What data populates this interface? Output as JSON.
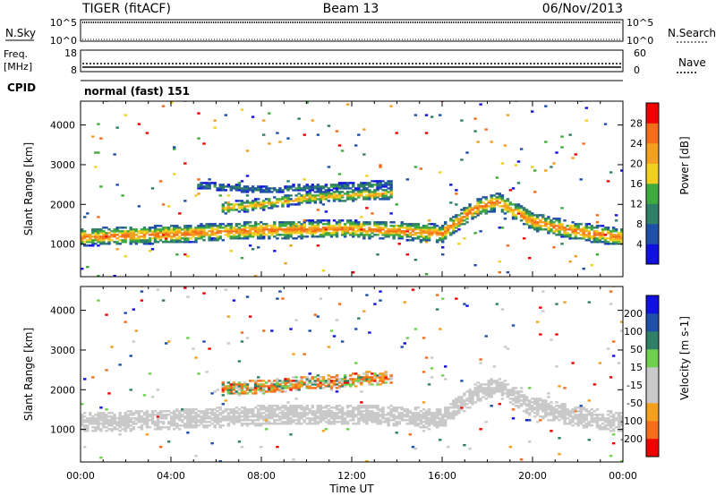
{
  "header": {
    "radar": "TIGER (fitACF)",
    "beam": "Beam 13",
    "date": "06/Nov/2013"
  },
  "top_panels": {
    "nsky": {
      "label": "N.Sky",
      "tick_top": "10^5",
      "tick_bottom": "10^0",
      "right_label": "N.Search",
      "right_tick_top": "10^5",
      "right_tick_bottom": "10^0"
    },
    "freq": {
      "label_line1": "Freq.",
      "label_line2": "[MHz]",
      "tick_top": "18",
      "tick_bottom": "8",
      "right_label": "Nave",
      "right_tick_top": "60",
      "right_tick_bottom": "0"
    },
    "cpid": {
      "label": "CPID",
      "value": "normal (fast) 151"
    }
  },
  "colors": {
    "power_scale": [
      "#1010e0",
      "#1f4fa8",
      "#2e7f66",
      "#3faa3f",
      "#f0d020",
      "#f3a020",
      "#f56c1a",
      "#f00000"
    ],
    "velocity_scale": [
      "#f00000",
      "#f56c1a",
      "#f3a020",
      "#c9c9c9",
      "#c9c9c9",
      "#6fd04f",
      "#2e7f66",
      "#1f4fa8",
      "#1010e0"
    ],
    "ground_scatter": "#c9c9c9"
  },
  "chart_data": [
    {
      "type": "heatmap",
      "ylabel": "Slant Range [km]",
      "xlabel": "",
      "xlim": [
        0,
        24
      ],
      "ylim": [
        180,
        4600
      ],
      "x_ticks": [
        "00:00",
        "04:00",
        "08:00",
        "12:00",
        "16:00",
        "20:00",
        "00:00"
      ],
      "y_ticks": [
        1000,
        2000,
        3000,
        4000
      ],
      "colorbar": {
        "label": "Power [dB]",
        "ticks": [
          4,
          8,
          12,
          16,
          20,
          24,
          28
        ],
        "range": [
          0,
          32
        ]
      },
      "bands": [
        {
          "name": "main-echo",
          "points": [
            [
              0,
              1150
            ],
            [
              4,
              1230
            ],
            [
              8,
              1330
            ],
            [
              10,
              1350
            ],
            [
              12,
              1360
            ],
            [
              14,
              1320
            ],
            [
              16,
              1250
            ],
            [
              17.5,
              1900
            ],
            [
              18.5,
              2050
            ],
            [
              20,
              1550
            ],
            [
              22,
              1300
            ],
            [
              24,
              1150
            ]
          ],
          "width_km": 450,
          "peak_db": 26
        },
        {
          "name": "upper-patch",
          "points": [
            [
              6.5,
              1900
            ],
            [
              8,
              1980
            ],
            [
              10,
              2150
            ],
            [
              11.5,
              2200
            ],
            [
              13.5,
              2250
            ]
          ],
          "width_km": 300,
          "peak_db": 22
        },
        {
          "name": "far-patch",
          "points": [
            [
              5.5,
              2450
            ],
            [
              8,
              2350
            ],
            [
              10,
              2400
            ],
            [
              12,
              2450
            ],
            [
              13.5,
              2500
            ]
          ],
          "width_km": 180,
          "peak_db": 11
        }
      ]
    },
    {
      "type": "heatmap",
      "ylabel": "Slant Range [km]",
      "xlabel": "Time UT",
      "xlim": [
        0,
        24
      ],
      "ylim": [
        180,
        4600
      ],
      "x_ticks": [
        "00:00",
        "04:00",
        "08:00",
        "12:00",
        "16:00",
        "20:00",
        "00:00"
      ],
      "y_ticks": [
        1000,
        2000,
        3000,
        4000
      ],
      "colorbar": {
        "label": "Velocity [m s-1]",
        "ticks": [
          -200,
          -100,
          -50,
          -15,
          15,
          50,
          100,
          200
        ],
        "range": [
          -250,
          250
        ]
      },
      "bands": [
        {
          "name": "ground-scatter",
          "points": [
            [
              0,
              1150
            ],
            [
              4,
              1230
            ],
            [
              8,
              1330
            ],
            [
              12,
              1360
            ],
            [
              14,
              1320
            ],
            [
              16,
              1250
            ],
            [
              17.5,
              1900
            ],
            [
              18.5,
              2050
            ],
            [
              20,
              1550
            ],
            [
              22,
              1300
            ],
            [
              24,
              1150
            ]
          ],
          "width_km": 500,
          "velocity": 0
        },
        {
          "name": "ionospheric-patch",
          "points": [
            [
              6.5,
              2000
            ],
            [
              8,
              2050
            ],
            [
              10,
              2150
            ],
            [
              11.5,
              2200
            ],
            [
              13.5,
              2300
            ]
          ],
          "width_km": 350,
          "velocity": -60
        }
      ]
    }
  ]
}
